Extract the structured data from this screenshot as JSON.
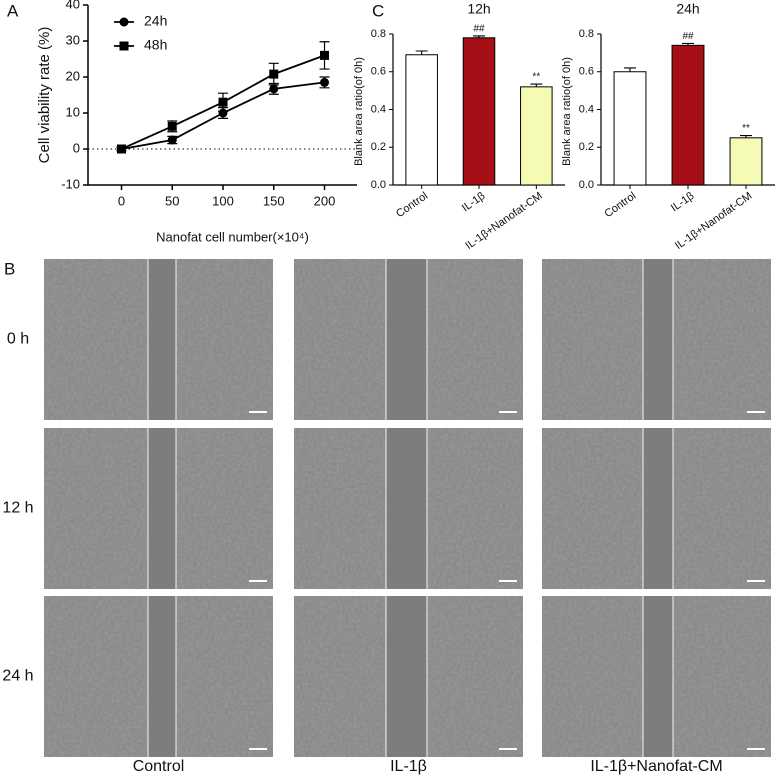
{
  "panel_labels": [
    "A",
    "B",
    "C"
  ],
  "chart_data": [
    {
      "type": "line",
      "ylabel": "Cell viability rate (%)",
      "xlabel": "Nanofat cell number(×10⁴)",
      "x": [
        0,
        50,
        100,
        150,
        200
      ],
      "xlim": [
        -33,
        232
      ],
      "xticks": [
        0,
        50,
        100,
        150,
        200
      ],
      "ylim": [
        -10,
        40
      ],
      "yticks": [
        -10,
        0,
        10,
        20,
        30,
        40
      ],
      "reference_line": {
        "y": 0,
        "style": "dotted"
      },
      "legend": "upper left",
      "series": [
        {
          "name": "24h",
          "color": "#000000",
          "marker": "circle",
          "values": [
            0,
            2.5,
            10,
            16.7,
            18.5
          ],
          "errors": [
            0.5,
            1,
            1.5,
            1.5,
            1.5
          ]
        },
        {
          "name": "48h",
          "color": "#000000",
          "marker": "square",
          "values": [
            0,
            6.3,
            13,
            20.8,
            26
          ],
          "errors": [
            0.5,
            1.5,
            2.5,
            3,
            3.8
          ]
        }
      ]
    },
    {
      "type": "bar",
      "title": "12h",
      "ylabel": "Blank area ratio(of 0h)",
      "categories": [
        "Control",
        "IL-1β",
        "IL-1β+Nanofat-CM"
      ],
      "values": [
        0.69,
        0.78,
        0.52
      ],
      "errors": [
        0.02,
        0.01,
        0.015
      ],
      "colors": [
        "#ffffff",
        "#a50f15",
        "#f5fbb5"
      ],
      "annotations": [
        {
          "index": 1,
          "text": "##"
        },
        {
          "index": 2,
          "text": "**"
        }
      ],
      "ylim": [
        0,
        0.8
      ],
      "yticks": [
        {
          "value": 0,
          "label": "0.0"
        },
        0.2,
        0.4,
        0.6,
        0.8
      ]
    },
    {
      "type": "bar",
      "title": "24h",
      "ylabel": "Blank area ratio(of 0h)",
      "categories": [
        "Control",
        "IL-1β",
        "IL-1β+Nanofat-CM"
      ],
      "values": [
        0.6,
        0.74,
        0.25
      ],
      "errors": [
        0.02,
        0.01,
        0.012
      ],
      "colors": [
        "#ffffff",
        "#a50f15",
        "#f5fbb5"
      ],
      "annotations": [
        {
          "index": 1,
          "text": "##"
        },
        {
          "index": 2,
          "text": "**"
        }
      ],
      "ylim": [
        0,
        0.8
      ],
      "yticks": [
        {
          "value": 0,
          "label": "0.0"
        },
        0.2,
        0.4,
        0.6,
        0.8
      ]
    }
  ],
  "micrographs": {
    "row_labels": [
      "0 h",
      "12 h",
      "24 h"
    ],
    "column_labels": [
      "Control",
      "IL-1β",
      "IL-1β+Nanofat-CM"
    ]
  }
}
